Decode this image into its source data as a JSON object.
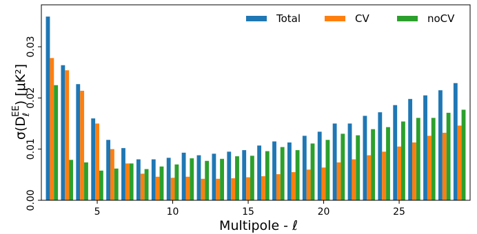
{
  "chart_data": {
    "type": "bar",
    "xlabel": "Multipole - ℓ",
    "ylabel_main": "σ(D",
    "ylabel_sub": "ℓ",
    "ylabel_sup": "EE",
    "ylabel_unit": ") [μK²]",
    "xlim": [
      1.3,
      29.7
    ],
    "ylim": [
      0.0,
      0.0382
    ],
    "xticks": [
      5,
      10,
      15,
      20,
      25
    ],
    "xtick_labels": [
      "5",
      "10",
      "15",
      "20",
      "25"
    ],
    "yticks": [
      0.0,
      0.01,
      0.02,
      0.03
    ],
    "ytick_labels": [
      "0.00",
      "0.01",
      "0.02",
      "0.03"
    ],
    "grid": false,
    "legend_position": "top-right",
    "x": [
      2,
      3,
      4,
      5,
      6,
      7,
      8,
      9,
      10,
      11,
      12,
      13,
      14,
      15,
      16,
      17,
      18,
      19,
      20,
      21,
      22,
      23,
      24,
      25,
      26,
      27,
      28,
      29
    ],
    "series": [
      {
        "name": "Total",
        "color": "#1f77b4",
        "values": [
          0.0359,
          0.0264,
          0.0227,
          0.016,
          0.0118,
          0.0102,
          0.008,
          0.008,
          0.0083,
          0.0093,
          0.0088,
          0.0091,
          0.0095,
          0.0098,
          0.0107,
          0.0115,
          0.0113,
          0.0126,
          0.0134,
          0.015,
          0.015,
          0.0165,
          0.0172,
          0.0186,
          0.0198,
          0.0205,
          0.0215,
          0.0229
        ]
      },
      {
        "name": "CV",
        "color": "#ff7f0e",
        "values": [
          0.0278,
          0.0254,
          0.0214,
          0.015,
          0.01,
          0.0072,
          0.0052,
          0.0046,
          0.0044,
          0.0046,
          0.0042,
          0.0042,
          0.0043,
          0.0045,
          0.0047,
          0.0051,
          0.0055,
          0.006,
          0.0064,
          0.0074,
          0.008,
          0.0088,
          0.0095,
          0.0105,
          0.0113,
          0.0126,
          0.0132,
          0.0146
        ]
      },
      {
        "name": "noCV",
        "color": "#2ca02c",
        "values": [
          0.0225,
          0.0079,
          0.0074,
          0.0058,
          0.0062,
          0.0072,
          0.0061,
          0.0066,
          0.007,
          0.0082,
          0.0077,
          0.0081,
          0.0086,
          0.0087,
          0.0096,
          0.0104,
          0.0098,
          0.0111,
          0.0118,
          0.013,
          0.0127,
          0.0139,
          0.0143,
          0.0154,
          0.0161,
          0.0161,
          0.0171,
          0.0177
        ]
      }
    ]
  }
}
